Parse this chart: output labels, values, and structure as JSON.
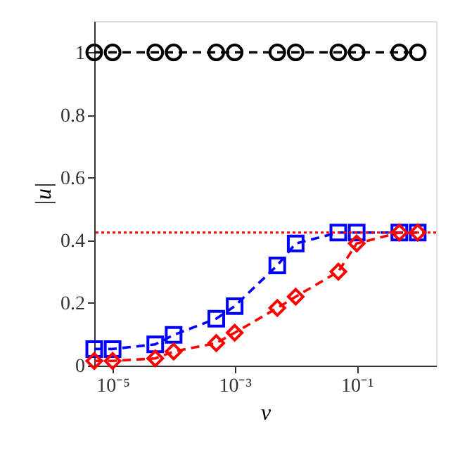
{
  "chart_data": {
    "type": "line",
    "xlabel": "ν",
    "ylabel": "|u|",
    "log": "x",
    "x": [
      5e-06,
      1e-05,
      5e-05,
      0.0001,
      0.0005,
      0.001,
      0.005,
      0.01,
      0.05,
      0.1,
      0.5,
      1
    ],
    "series": [
      {
        "color": "#000000",
        "marker": "circle",
        "values": [
          1,
          1,
          1,
          1,
          1,
          1,
          1,
          1,
          1,
          1,
          1,
          1
        ]
      },
      {
        "color": "#0000ff",
        "marker": "square",
        "values": [
          0.053,
          0.053,
          0.068,
          0.098,
          0.15,
          0.19,
          0.32,
          0.39,
          0.425,
          0.425,
          0.425,
          0.425
        ]
      },
      {
        "color": "#ff0000",
        "marker": "diamond",
        "values": [
          0.015,
          0.015,
          0.023,
          0.045,
          0.072,
          0.105,
          0.184,
          0.22,
          0.3,
          0.39,
          0.425,
          0.425
        ]
      }
    ],
    "line_style": "dashed",
    "ref_lines": [
      {
        "axis": "y",
        "value": 0.425,
        "color": "#ff0000",
        "line_style": "dotted"
      }
    ],
    "xlim": [
      5e-06,
      2
    ],
    "ylim": [
      0,
      1.1
    ],
    "xticks": [
      {
        "value": 1e-05,
        "label": "10⁻⁵"
      },
      {
        "value": 0.001,
        "label": "10⁻³"
      },
      {
        "value": 0.1,
        "label": "10⁻¹"
      }
    ],
    "yticks": [
      0,
      0.2,
      0.4,
      0.6,
      0.8,
      1
    ],
    "grid": false
  }
}
